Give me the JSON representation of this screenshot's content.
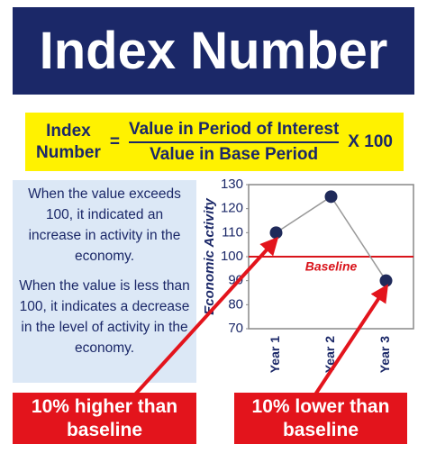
{
  "header": {
    "title": "Index Number"
  },
  "formula": {
    "left_lines": [
      "Index",
      "Number"
    ],
    "equals": "=",
    "numerator": "Value in Period of Interest",
    "denominator": "Value in Base Period",
    "multiplier": "X 100"
  },
  "explanation": {
    "paragraphs": [
      "When the value exceeds 100, it indicated an increase in activity in the economy.",
      "When the value is less than 100, it indicates a decrease in the level of activity in the economy."
    ]
  },
  "callouts": [
    "10% higher than baseline",
    "10% lower than baseline"
  ],
  "chart_data": {
    "type": "line",
    "y_label": "Economic Activity",
    "categories": [
      "Year 1",
      "Year 2",
      "Year 3"
    ],
    "values": [
      110,
      125,
      90
    ],
    "color": "#1f2a5a",
    "line_color": "#999999",
    "baseline": {
      "value": 100,
      "label": "Baseline",
      "color": "#d9141b"
    },
    "ylim": [
      70,
      130
    ],
    "yticks": [
      70,
      80,
      90,
      100,
      110,
      120,
      130
    ]
  }
}
